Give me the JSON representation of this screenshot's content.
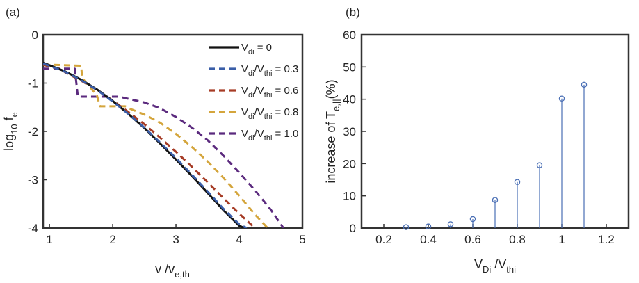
{
  "chart_data": [
    {
      "panel_label": "(a)",
      "type": "line",
      "xlabel": {
        "base": "v /v",
        "sub": "e,th"
      },
      "ylabel": {
        "base": "log",
        "sub": "10",
        "tail": " f",
        "sub2": "e"
      },
      "xlim": [
        0.9,
        5
      ],
      "ylim": [
        -4,
        0
      ],
      "xticks": [
        1,
        2,
        3,
        4,
        5
      ],
      "yticks": [
        -4,
        -3,
        -2,
        -1,
        0
      ],
      "grid": false,
      "legend_position": "top-right",
      "series": [
        {
          "legend": [
            {
              "t": "V"
            },
            {
              "t": "di",
              "sub": true
            },
            {
              "t": " = 0"
            }
          ],
          "color": "#111111",
          "dash": "solid",
          "x": [
            0.9,
            1.0,
            1.25,
            1.5,
            1.75,
            2.0,
            2.25,
            2.5,
            2.75,
            3.0,
            3.25,
            3.5,
            3.75,
            4.0,
            4.08
          ],
          "y": [
            -0.58,
            -0.63,
            -0.76,
            -0.93,
            -1.13,
            -1.37,
            -1.64,
            -1.93,
            -2.25,
            -2.58,
            -2.92,
            -3.27,
            -3.63,
            -3.95,
            -4.0
          ]
        },
        {
          "legend": [
            {
              "t": "V"
            },
            {
              "t": "di",
              "sub": true
            },
            {
              "t": "/V"
            },
            {
              "t": "thi",
              "sub": true
            },
            {
              "t": " = 0.3"
            }
          ],
          "color": "#3a5ea8",
          "dash": "dashed",
          "x": [
            0.9,
            1.0,
            1.25,
            1.5,
            1.75,
            2.0,
            2.25,
            2.5,
            2.75,
            3.0,
            3.25,
            3.5,
            3.75,
            4.0,
            4.12
          ],
          "y": [
            -0.6,
            -0.64,
            -0.77,
            -0.94,
            -1.14,
            -1.38,
            -1.64,
            -1.92,
            -2.23,
            -2.55,
            -2.89,
            -3.24,
            -3.6,
            -3.92,
            -4.0
          ]
        },
        {
          "legend": [
            {
              "t": "V"
            },
            {
              "t": "di",
              "sub": true
            },
            {
              "t": "/V"
            },
            {
              "t": "thi",
              "sub": true
            },
            {
              "t": " = 0.6"
            }
          ],
          "color": "#a63c26",
          "dash": "dashed",
          "x": [
            0.9,
            1.0,
            1.2,
            1.25,
            1.5,
            1.75,
            2.0,
            2.25,
            2.5,
            2.75,
            3.0,
            3.25,
            3.5,
            3.75,
            4.0,
            4.25
          ],
          "y": [
            -0.62,
            -0.66,
            -0.72,
            -0.78,
            -0.95,
            -1.14,
            -1.36,
            -1.6,
            -1.85,
            -2.13,
            -2.42,
            -2.73,
            -3.05,
            -3.38,
            -3.7,
            -4.0
          ]
        },
        {
          "legend": [
            {
              "t": "V"
            },
            {
              "t": "di",
              "sub": true
            },
            {
              "t": "/V"
            },
            {
              "t": "thi",
              "sub": true
            },
            {
              "t": " = 0.8"
            }
          ],
          "color": "#d4a53c",
          "dash": "dashed",
          "x": [
            0.9,
            1.0,
            1.5,
            1.52,
            1.75,
            1.8,
            2.0,
            2.2,
            2.25,
            2.5,
            2.75,
            3.0,
            3.25,
            3.5,
            3.75,
            4.0,
            4.25,
            4.45
          ],
          "y": [
            -0.62,
            -0.62,
            -0.64,
            -0.9,
            -1.25,
            -1.48,
            -1.48,
            -1.48,
            -1.52,
            -1.65,
            -1.82,
            -2.05,
            -2.32,
            -2.62,
            -2.96,
            -3.33,
            -3.72,
            -4.0
          ]
        },
        {
          "legend": [
            {
              "t": "V"
            },
            {
              "t": "di",
              "sub": true
            },
            {
              "t": "/V"
            },
            {
              "t": "thi",
              "sub": true
            },
            {
              "t": " = 1.0"
            }
          ],
          "color": "#5b2a7e",
          "dash": "dashed",
          "x": [
            0.9,
            1.0,
            1.25,
            1.4,
            1.45,
            1.5,
            2.0,
            2.1,
            2.5,
            2.75,
            3.0,
            3.25,
            3.5,
            3.75,
            4.0,
            4.25,
            4.5,
            4.7
          ],
          "y": [
            -0.7,
            -0.7,
            -0.7,
            -0.7,
            -1.28,
            -1.28,
            -1.28,
            -1.28,
            -1.4,
            -1.52,
            -1.7,
            -1.92,
            -2.18,
            -2.5,
            -2.85,
            -3.22,
            -3.62,
            -4.0
          ]
        }
      ]
    },
    {
      "panel_label": "(b)",
      "type": "stem",
      "xlabel": {
        "base": "V",
        "sub": "Di",
        "tail": " /V",
        "sub2": "thi"
      },
      "ylabel": {
        "base": "increase of T",
        "sub": "e,||",
        "tail": "(%)"
      },
      "xlim": [
        0.1,
        1.3
      ],
      "ylim": [
        0,
        60
      ],
      "xticks": [
        0.2,
        0.4,
        0.6,
        0.8,
        1,
        1.2
      ],
      "yticks": [
        0,
        10,
        20,
        30,
        40,
        50,
        60
      ],
      "grid": false,
      "color": "#4a6fb5",
      "x": [
        0.3,
        0.4,
        0.5,
        0.6,
        0.7,
        0.8,
        0.9,
        1.0,
        1.1
      ],
      "y": [
        0.3,
        0.5,
        1.2,
        2.8,
        8.7,
        14.3,
        19.5,
        40.2,
        44.5
      ]
    }
  ]
}
